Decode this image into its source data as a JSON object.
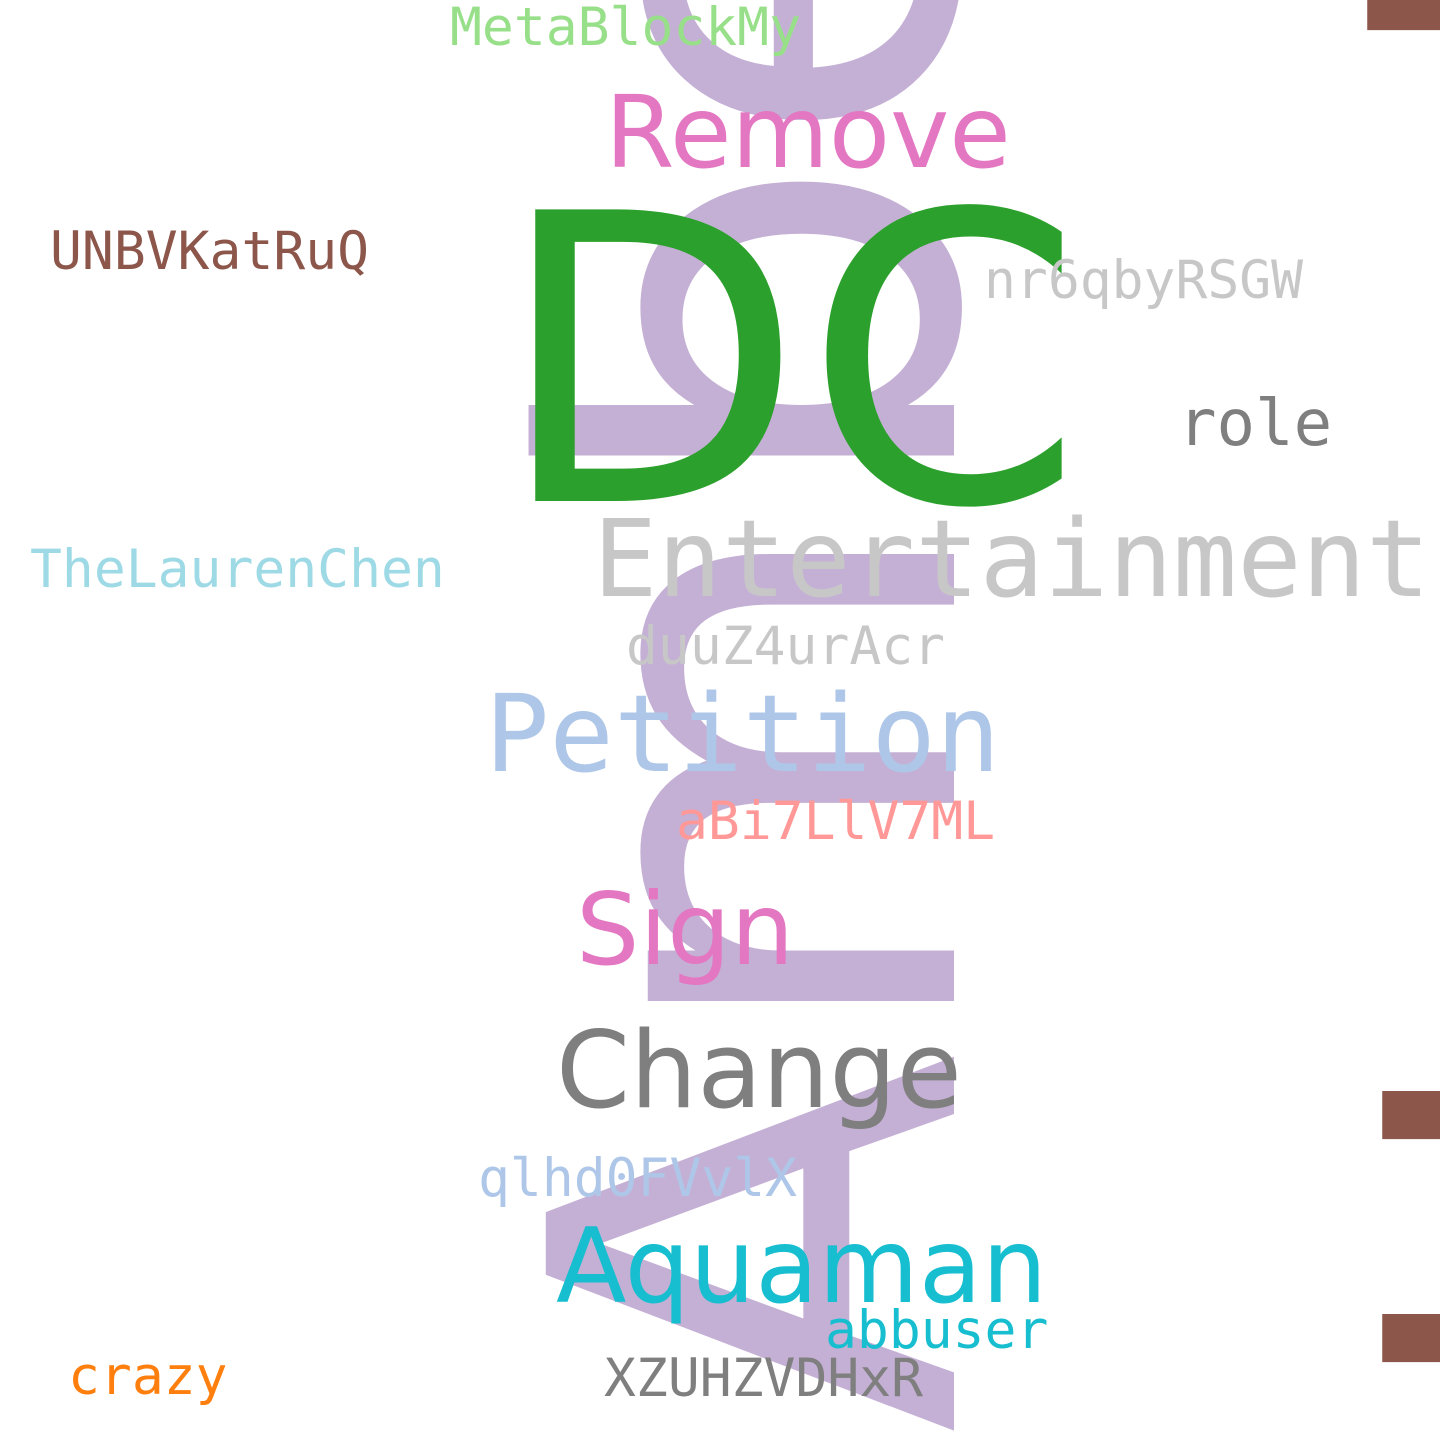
{
  "words": [
    {
      "key": "amber",
      "text": "Amber",
      "color": "#c5b0d5"
    },
    {
      "key": "heard",
      "text": "Heard",
      "color": "#8c564b"
    },
    {
      "key": "dc",
      "text": "DC",
      "color": "#2ca02c"
    },
    {
      "key": "entertainment",
      "text": "Entertainment",
      "color": "#c7c7c7"
    },
    {
      "key": "petition",
      "text": "Petition",
      "color": "#aec7e8"
    },
    {
      "key": "change",
      "text": "Change",
      "color": "#7f7f7f"
    },
    {
      "key": "aquaman",
      "text": "Aquaman",
      "color": "#17becf"
    },
    {
      "key": "remove",
      "text": "Remove",
      "color": "#e377c2"
    },
    {
      "key": "sign",
      "text": "Sign",
      "color": "#e377c2"
    },
    {
      "key": "role",
      "text": "role",
      "color": "#7f7f7f"
    },
    {
      "key": "metablock",
      "text": "MetaBlockMy",
      "color": "#98df8a"
    },
    {
      "key": "unbv",
      "text": "UNBVKatRuQ",
      "color": "#8c564b"
    },
    {
      "key": "nr6q",
      "text": "nr6qbyRSGW",
      "color": "#c7c7c7"
    },
    {
      "key": "lauren",
      "text": "TheLaurenChen",
      "color": "#9edae5"
    },
    {
      "key": "duuz",
      "text": "duuZ4urAcr",
      "color": "#c7c7c7"
    },
    {
      "key": "abi7",
      "text": "aBi7LlV7ML",
      "color": "#ff9896"
    },
    {
      "key": "qlhd",
      "text": "qlhd0FVvlX",
      "color": "#aec7e8"
    },
    {
      "key": "abbuser",
      "text": "abbuser",
      "color": "#17becf"
    },
    {
      "key": "crazy",
      "text": "crazy",
      "color": "#ff7f0e"
    },
    {
      "key": "xzuh",
      "text": "XZUHZVDHxR",
      "color": "#7f7f7f"
    }
  ]
}
